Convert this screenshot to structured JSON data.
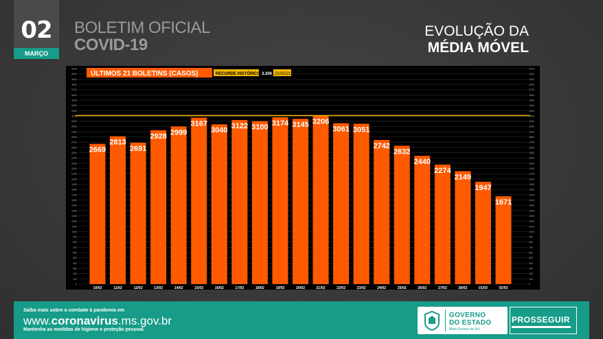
{
  "header": {
    "day": "02",
    "month": "MARÇO",
    "title_line1": "BOLETIM OFICIAL",
    "title_line2": "COVID-19",
    "right_line1": "EVOLUÇÃO DA",
    "right_line2": "MÉDIA MÓVEL"
  },
  "chart_data": {
    "type": "bar",
    "title": "ÚLTIMOS 21 BOLETINS (CASOS)",
    "record_label": "RECORDE HISTÓRICO",
    "record_value_text": "3.206",
    "record_date": "21/02/21",
    "record_value": 3206,
    "categories": [
      "10/02",
      "11/02",
      "12/02",
      "13/02",
      "14/02",
      "15/02",
      "16/02",
      "17/02",
      "18/02",
      "19/02",
      "20/02",
      "21/02",
      "22/02",
      "23/02",
      "24/02",
      "25/02",
      "26/02",
      "27/02",
      "28/02",
      "01/03",
      "02/03"
    ],
    "values": [
      2669,
      2813,
      2691,
      2928,
      2999,
      3167,
      3040,
      3122,
      3100,
      3174,
      3145,
      3206,
      3061,
      3051,
      2742,
      2632,
      2440,
      2274,
      2149,
      1947,
      1671
    ],
    "ylim": [
      0,
      4100
    ],
    "grid": true,
    "colors": {
      "bar": "#ff5a00",
      "record_line": "#f2b705",
      "plot_bg": "#000000",
      "label": "#ffffff"
    }
  },
  "footer": {
    "line1": "Saiba mais sobre o combate à pandemia em",
    "url_pre": "www.",
    "url_bold": "coronavirus",
    "url_post": ".ms.gov.br",
    "line3": "Mantenha as medidas de higiene e proteção pessoal.",
    "gov_line1": "GOVERNO",
    "gov_line2": "DO ESTADO",
    "gov_line3": "Mato Grosso do Sul",
    "program": "PROSSEGUIR"
  }
}
